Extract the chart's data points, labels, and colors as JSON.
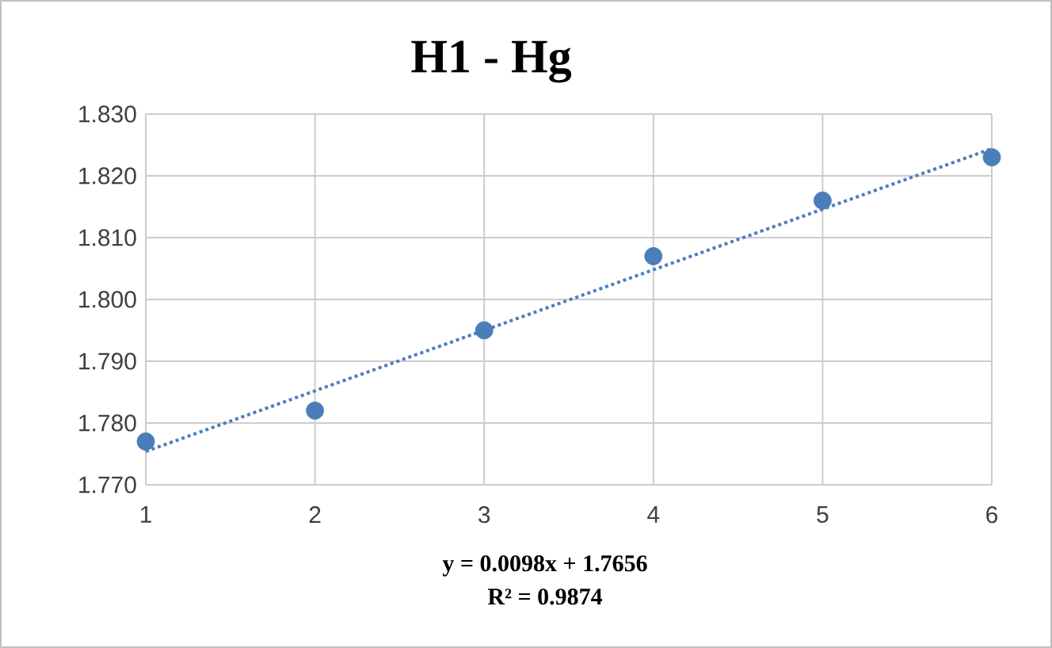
{
  "chart_data": {
    "type": "scatter",
    "title": "H1 - Hg",
    "x": [
      1,
      2,
      3,
      4,
      5,
      6
    ],
    "series": [
      {
        "color": "#4a7ebb",
        "marker": "circle",
        "values": [
          1.777,
          1.782,
          1.795,
          1.807,
          1.816,
          1.823
        ]
      },
      {
        "type": "line",
        "color": "#4a7ebb",
        "line_style": "dotted",
        "marker": "none",
        "x": [
          1,
          6
        ],
        "values": [
          1.7754,
          1.8244
        ]
      }
    ],
    "xlim": [
      1,
      6
    ],
    "xticks": [
      1,
      2,
      3,
      4,
      5,
      6
    ],
    "ylim": [
      1.77,
      1.83
    ],
    "yticks": [
      {
        "value": 1.77,
        "label": "1.770"
      },
      {
        "value": 1.78,
        "label": "1.780"
      },
      {
        "value": 1.79,
        "label": "1.790"
      },
      {
        "value": 1.8,
        "label": "1.800"
      },
      {
        "value": 1.81,
        "label": "1.810"
      },
      {
        "value": 1.82,
        "label": "1.820"
      },
      {
        "value": 1.83,
        "label": "1.830"
      }
    ],
    "grid": true,
    "annotations": [
      "y = 0.0098x + 1.7656",
      "R² = 0.9874"
    ]
  }
}
